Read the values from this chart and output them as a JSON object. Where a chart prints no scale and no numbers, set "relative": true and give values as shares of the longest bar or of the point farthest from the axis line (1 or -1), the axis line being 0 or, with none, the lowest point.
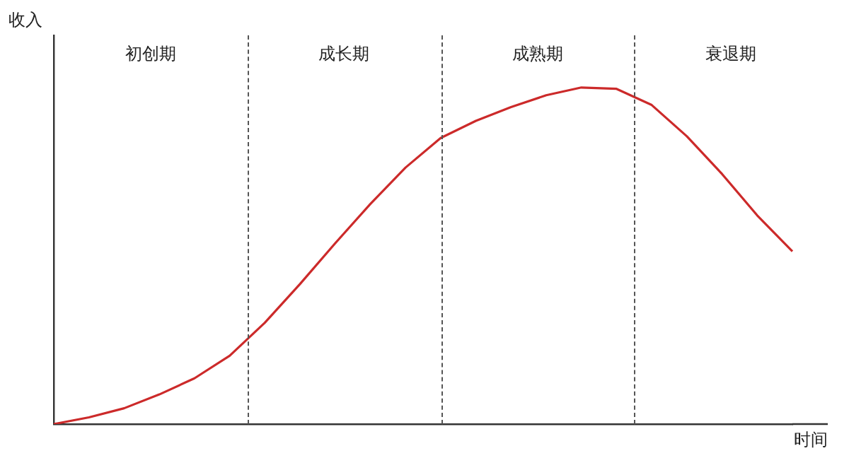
{
  "chart_data": {
    "type": "line",
    "xlabel": "时间",
    "ylabel": "收入",
    "relative": true,
    "marker": "none",
    "line_style": "solid",
    "categories": [
      null,
      null,
      null,
      null,
      null,
      null,
      null,
      null,
      null,
      null,
      null,
      null,
      null,
      null,
      null,
      null,
      null,
      null,
      null,
      null,
      null,
      null
    ],
    "series": [
      {
        "color": "#cc2a2a",
        "values": [
          0,
          0.02,
          0.047,
          0.088,
          0.136,
          0.203,
          0.301,
          0.416,
          0.537,
          0.654,
          0.762,
          0.85,
          0.901,
          0.942,
          0.977,
          1,
          0.996,
          0.948,
          0.855,
          0.743,
          0.62,
          0.513
        ]
      }
    ],
    "annotations": [
      "初创期",
      "成长期",
      "成熟期",
      "衰退期"
    ]
  }
}
